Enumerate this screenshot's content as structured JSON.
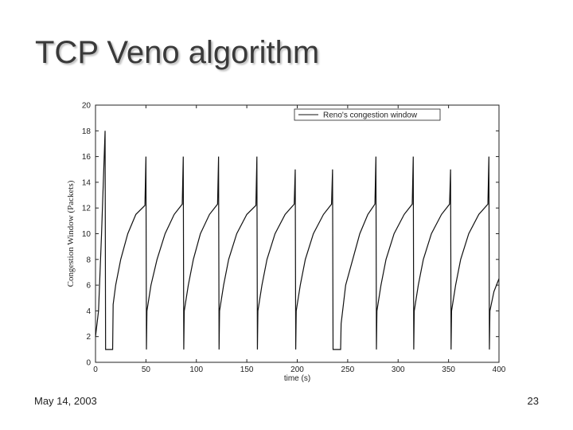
{
  "title": "TCP Veno algorithm",
  "footer": {
    "date": "May 14, 2003",
    "page": "23"
  },
  "chart_data": {
    "type": "line",
    "xlabel": "time (s)",
    "ylabel": "Congestion Window (Packets)",
    "xlim": [
      0,
      400
    ],
    "ylim": [
      0,
      20
    ],
    "xticks": [
      0,
      50,
      100,
      150,
      200,
      250,
      300,
      350,
      400
    ],
    "yticks": [
      0,
      2,
      4,
      6,
      8,
      10,
      12,
      14,
      16,
      18,
      20
    ],
    "legend": "upper right",
    "x": [
      0,
      3,
      6,
      9.5,
      10,
      17,
      17.5,
      20,
      25,
      32,
      40,
      49,
      50,
      50.5,
      51,
      55,
      61,
      69,
      78,
      86,
      87,
      87.5,
      88,
      92,
      97,
      104,
      113,
      121,
      122,
      122.5,
      123,
      127,
      132,
      140,
      150,
      159,
      160,
      160.5,
      161,
      165,
      170,
      178,
      188,
      197,
      198,
      198.5,
      199,
      203,
      208,
      216,
      226,
      234,
      235,
      235.5,
      243,
      243.5,
      248,
      255,
      262,
      270,
      277,
      278,
      278.5,
      279,
      283,
      288,
      296,
      306,
      314,
      315,
      315.5,
      316,
      320,
      325,
      333,
      343,
      351,
      352,
      352.5,
      353,
      357,
      362,
      370,
      380,
      389,
      390,
      390.5,
      391,
      395,
      400
    ],
    "series": [
      {
        "name": "Reno's congestion window",
        "color": "#111111",
        "values": [
          2,
          4,
          10,
          18,
          1,
          1,
          4.5,
          6,
          8,
          10,
          11.5,
          12.2,
          16,
          1,
          4,
          6,
          8,
          10,
          11.5,
          12.3,
          16,
          1,
          4,
          6,
          8,
          10,
          11.5,
          12.3,
          16,
          1,
          4,
          6,
          8,
          10,
          11.5,
          12.2,
          16,
          1,
          4,
          6,
          8,
          10,
          11.5,
          12.3,
          15,
          1,
          4,
          6,
          8,
          10,
          11.5,
          12.3,
          15,
          1,
          1,
          3,
          6,
          8,
          10,
          11.5,
          12.3,
          16,
          1,
          4,
          6,
          8,
          10,
          11.5,
          12.3,
          16,
          1,
          4,
          6,
          8,
          10,
          11.5,
          12.3,
          15,
          1,
          4,
          6,
          8,
          10,
          11.5,
          12.3,
          16,
          1,
          4,
          5.5,
          6.5
        ]
      }
    ]
  }
}
